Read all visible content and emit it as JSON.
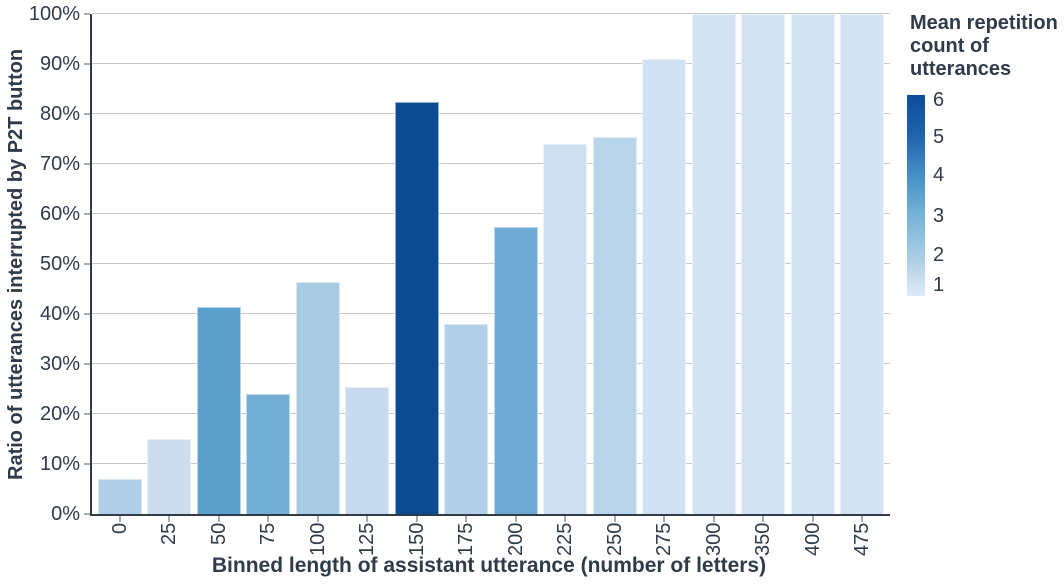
{
  "chart_data": {
    "type": "bar",
    "title": "",
    "xlabel": "Binned length of assistant utterance (number of letters)",
    "ylabel": "Ratio of utterances interrupted by P2T button",
    "ylim": [
      0,
      100
    ],
    "grid": "horizontal",
    "yticks_pct": [
      0,
      10,
      20,
      30,
      40,
      50,
      60,
      70,
      80,
      90,
      100
    ],
    "ytick_labels": [
      "0%",
      "10%",
      "20%",
      "30%",
      "40%",
      "50%",
      "60%",
      "70%",
      "80%",
      "90%",
      "100%"
    ],
    "categories": [
      "0",
      "25",
      "50",
      "75",
      "100",
      "125",
      "150",
      "175",
      "200",
      "225",
      "250",
      "275",
      "300",
      "350",
      "400",
      "475"
    ],
    "bars": [
      {
        "category": "0",
        "ratio_pct": 7,
        "mean_repetition_est": 2.1,
        "color": "#AECFE7"
      },
      {
        "category": "25",
        "ratio_pct": 15,
        "mean_repetition_est": 1.4,
        "color": "#CBDDEF"
      },
      {
        "category": "50",
        "ratio_pct": 41.5,
        "mean_repetition_est": 4.1,
        "color": "#5CA1CE"
      },
      {
        "category": "75",
        "ratio_pct": 24,
        "mean_repetition_est": 3.6,
        "color": "#72ADD6"
      },
      {
        "category": "100",
        "ratio_pct": 46.5,
        "mean_repetition_est": 2.2,
        "color": "#A7CCE4"
      },
      {
        "category": "125",
        "ratio_pct": 25.5,
        "mean_repetition_est": 1.5,
        "color": "#C5DAED"
      },
      {
        "category": "150",
        "ratio_pct": 82.5,
        "mean_repetition_est": 6.0,
        "color": "#0C4A92"
      },
      {
        "category": "175",
        "ratio_pct": 38,
        "mean_repetition_est": 2.0,
        "color": "#B2D1E8"
      },
      {
        "category": "200",
        "ratio_pct": 57.5,
        "mean_repetition_est": 3.7,
        "color": "#6FACD5"
      },
      {
        "category": "225",
        "ratio_pct": 74,
        "mean_repetition_est": 1.3,
        "color": "#CEDFF0"
      },
      {
        "category": "250",
        "ratio_pct": 75.5,
        "mean_repetition_est": 1.9,
        "color": "#B7D4EA"
      },
      {
        "category": "275",
        "ratio_pct": 91,
        "mean_repetition_est": 1.2,
        "color": "#D0E1F1"
      },
      {
        "category": "300",
        "ratio_pct": 100,
        "mean_repetition_est": 1.0,
        "color": "#D3E3F2"
      },
      {
        "category": "350",
        "ratio_pct": 100,
        "mean_repetition_est": 1.0,
        "color": "#D3E3F2"
      },
      {
        "category": "400",
        "ratio_pct": 100,
        "mean_repetition_est": 1.0,
        "color": "#D3E3F2"
      },
      {
        "category": "475",
        "ratio_pct": 100,
        "mean_repetition_est": 1.0,
        "color": "#D3E3F2"
      }
    ],
    "colorbar_legend": {
      "title": "Mean repetition count of utterances",
      "title_lines": [
        "Mean repetition",
        "count of",
        "utterances"
      ],
      "position": "right",
      "range": [
        1,
        6
      ],
      "tick_labels": [
        "6",
        "5",
        "4",
        "3",
        "2",
        "1"
      ],
      "gradient_stops": [
        [
          "#0C4C9A",
          "0%"
        ],
        [
          "#2165AE",
          "21%"
        ],
        [
          "#4A94C9",
          "42%"
        ],
        [
          "#7DB8DB",
          "63%"
        ],
        [
          "#ACD0E6",
          "82%"
        ],
        [
          "#D3E2F1",
          "95%"
        ],
        [
          "#DBE9F6",
          "100%"
        ]
      ]
    }
  },
  "colors": {
    "background": "#FFFFFF",
    "text": "#2E3B4A",
    "grid": "#C6C9CC",
    "axis": "#2E3B4A",
    "tick": "#A7ADB3"
  }
}
